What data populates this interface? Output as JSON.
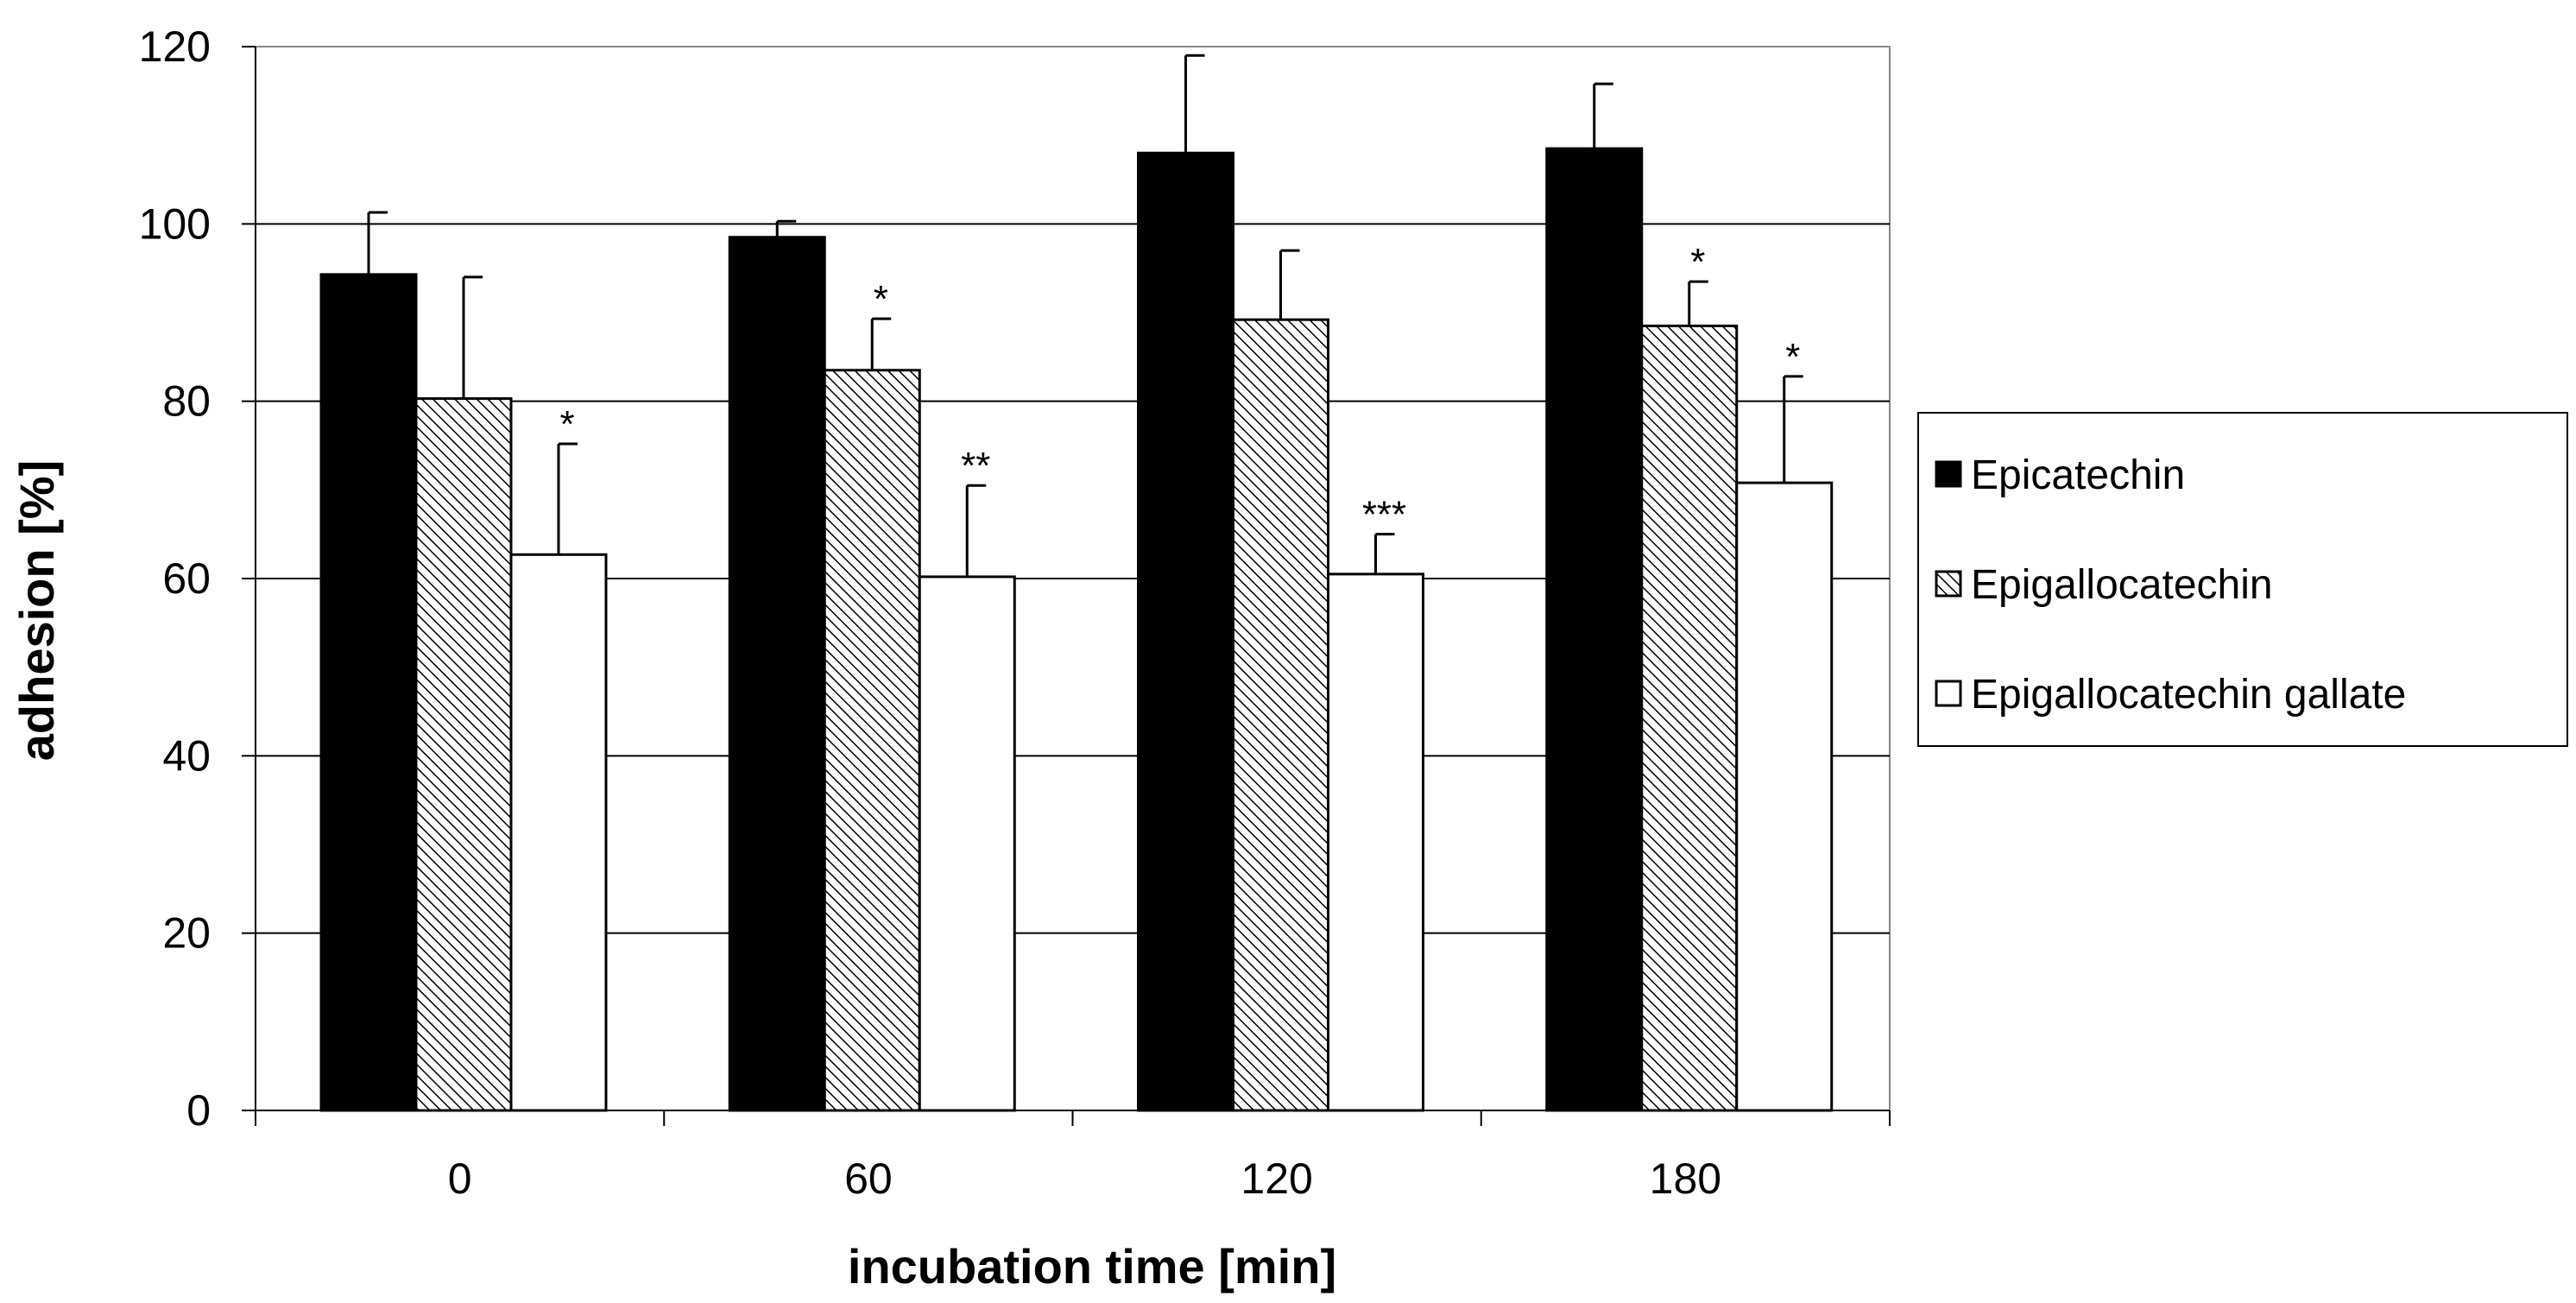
{
  "chart_data": {
    "type": "bar",
    "title": "",
    "xlabel": "incubation time [min]",
    "ylabel": "adhesion [%]",
    "ylim": [
      0,
      120
    ],
    "yticks": [
      "0",
      "20",
      "40",
      "60",
      "80",
      "100",
      "120"
    ],
    "grid": true,
    "legend_position": "right",
    "categories": [
      "0",
      "60",
      "120",
      "180"
    ],
    "series": [
      {
        "name": "Epicatechin",
        "fill": "solid",
        "color": "#000000",
        "values": [
          94.3,
          98.5,
          108.0,
          108.5
        ],
        "errors": [
          7.0,
          1.8,
          11.0,
          7.3
        ],
        "significance": [
          "",
          "",
          "",
          ""
        ]
      },
      {
        "name": "Epigallocatechin",
        "fill": "hatched",
        "color": "#000000",
        "values": [
          80.3,
          83.5,
          89.2,
          88.5
        ],
        "errors": [
          13.7,
          5.8,
          7.8,
          5.0
        ],
        "significance": [
          "",
          "*",
          "",
          "*"
        ]
      },
      {
        "name": "Epigallocatechin gallate",
        "fill": "white",
        "color": "#ffffff",
        "values": [
          62.7,
          60.2,
          60.5,
          70.8
        ],
        "errors": [
          12.5,
          10.3,
          4.5,
          12.0
        ],
        "significance": [
          "*",
          "**",
          "***",
          "*"
        ]
      }
    ]
  }
}
